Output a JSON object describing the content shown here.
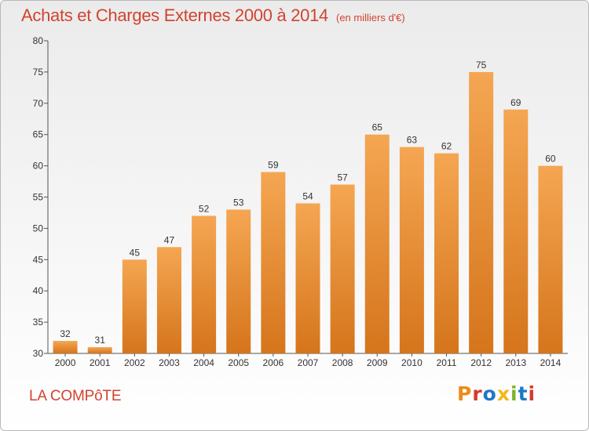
{
  "header": {
    "title": "Achats et Charges Externes 2000 à 2014",
    "subtitle": "(en milliers d'€)"
  },
  "footer": {
    "commune": "LA COMPôTE",
    "logo_text": "Proxiti"
  },
  "colors": {
    "title": "#d2432f",
    "bar_light": "#f5a652",
    "bar_dark": "#d5751c",
    "logo_letters": [
      "#ef8a18",
      "#d63a2a",
      "#1f77c9",
      "#f0b81a",
      "#7cb32a",
      "#1f77c9",
      "#d63a2a"
    ]
  },
  "chart_data": {
    "type": "bar",
    "categories": [
      "2000",
      "2001",
      "2002",
      "2003",
      "2004",
      "2005",
      "2006",
      "2007",
      "2008",
      "2009",
      "2010",
      "2011",
      "2012",
      "2013",
      "2014"
    ],
    "values": [
      32,
      31,
      45,
      47,
      52,
      53,
      59,
      54,
      57,
      65,
      63,
      62,
      75,
      69,
      60
    ],
    "title": "Achats et Charges Externes 2000 à 2014",
    "ylim": [
      30,
      80
    ],
    "yticks": [
      30,
      35,
      40,
      45,
      50,
      55,
      60,
      65,
      70,
      75,
      80
    ],
    "grid": false,
    "legend": "none"
  }
}
